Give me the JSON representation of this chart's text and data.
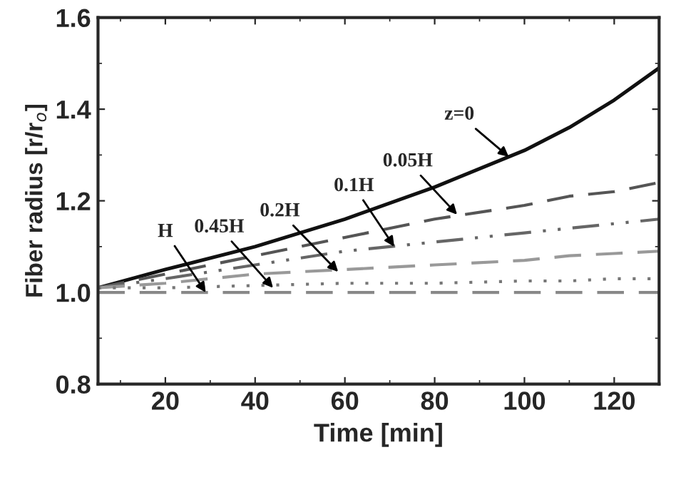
{
  "chart_data": {
    "type": "line",
    "xlabel": "Time [min]",
    "ylabel": "Fiber radius [r/r$_{o}$]",
    "xlim": [
      5,
      130
    ],
    "ylim": [
      0.8,
      1.6
    ],
    "xticks": [
      20,
      40,
      60,
      80,
      100,
      120
    ],
    "yticks": [
      {
        "value": 0.8,
        "label": "0.8"
      },
      {
        "value": 1.0,
        "label": "1.0"
      },
      {
        "value": 1.2,
        "label": "1.2"
      },
      {
        "value": 1.4,
        "label": "1.4"
      },
      {
        "value": 1.6,
        "label": "1.6"
      }
    ],
    "x": [
      5,
      20,
      40,
      60,
      80,
      100,
      110,
      120,
      130
    ],
    "series": [
      {
        "color": "#111111",
        "line_style": "solid",
        "values": [
          1.01,
          1.05,
          1.1,
          1.16,
          1.23,
          1.31,
          1.36,
          1.42,
          1.49
        ]
      },
      {
        "color": "#555555",
        "line_style": "dashed",
        "values": [
          1.01,
          1.04,
          1.08,
          1.12,
          1.16,
          1.19,
          1.21,
          1.22,
          1.24
        ]
      },
      {
        "color": "#666666",
        "line_style": "dashdotdot",
        "values": [
          1.01,
          1.03,
          1.06,
          1.09,
          1.11,
          1.13,
          1.14,
          1.15,
          1.16
        ]
      },
      {
        "color": "#999999",
        "line_style": "dashed",
        "values": [
          1.01,
          1.02,
          1.04,
          1.05,
          1.06,
          1.07,
          1.08,
          1.085,
          1.09
        ]
      },
      {
        "color": "#777777",
        "line_style": "dotted",
        "values": [
          1.01,
          1.01,
          1.015,
          1.02,
          1.02,
          1.025,
          1.025,
          1.03,
          1.03
        ]
      },
      {
        "color": "#888888",
        "line_style": "dashed",
        "values": [
          1.0,
          1.0,
          1.0,
          1.0,
          1.0,
          1.0,
          1.0,
          1.0,
          1.0
        ]
      }
    ],
    "annotations": [
      {
        "text": "z=0",
        "x": 96.5,
        "y": 1.296
      },
      {
        "text": "0.05H",
        "x": 85,
        "y": 1.17
      },
      {
        "text": "0.1H",
        "x": 71,
        "y": 1.1
      },
      {
        "text": "0.2H",
        "x": 58.5,
        "y": 1.045
      },
      {
        "text": "0.45H",
        "x": 44,
        "y": 1.01
      },
      {
        "text": "H",
        "x": 29,
        "y": 1.0
      }
    ],
    "grid": false,
    "legend": false
  }
}
